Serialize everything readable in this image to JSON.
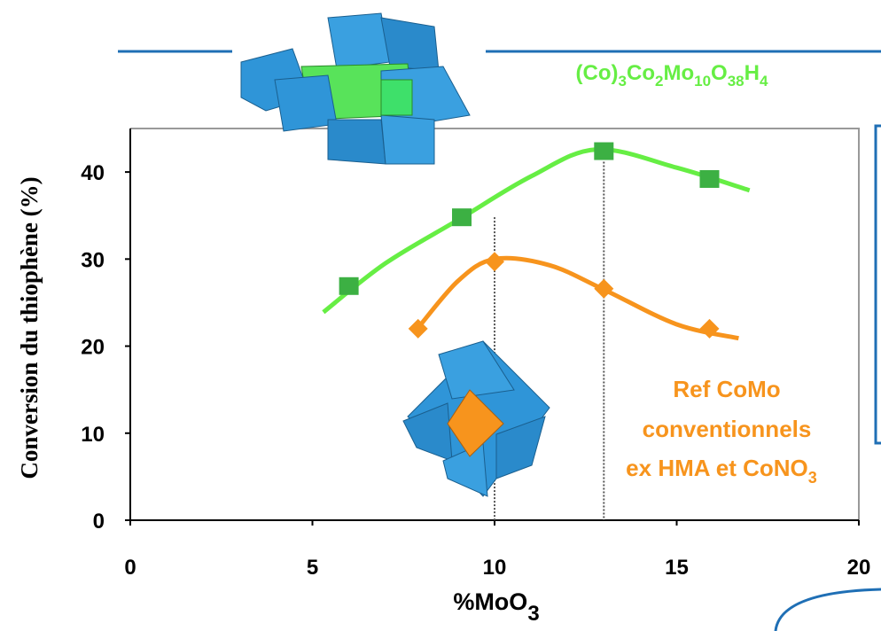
{
  "chart_data": {
    "type": "scatter",
    "formula": [
      "(Co)",
      "3",
      "Co",
      "2",
      "Mo",
      "10",
      "O",
      "38",
      "H",
      "4"
    ],
    "y_label": "Conversion du thiophène (%)",
    "x_label": {
      "text": "%MoO",
      "sub": "3"
    },
    "annotation": {
      "lines": [
        "Ref CoMo",
        "conventionnels",
        "ex HMA et CoNO"
      ],
      "sub": "3"
    },
    "xlim": [
      0,
      20
    ],
    "xticks": [
      0,
      5,
      10,
      15,
      20
    ],
    "ylim": [
      0,
      45
    ],
    "yticks": [
      0,
      10,
      20,
      30,
      40
    ],
    "series": [
      {
        "color": "#3cb043",
        "marker": "square",
        "x": [
          6,
          9.1,
          13,
          15.9
        ],
        "values": [
          26.9,
          34.8,
          42.4,
          39.2
        ]
      },
      {
        "color": "#f7941d",
        "marker": "diamond",
        "x": [
          7.9,
          10,
          13,
          15.9
        ],
        "values": [
          22,
          29.7,
          26.6,
          22
        ]
      }
    ],
    "fits": [
      {
        "color": "#66ee44",
        "x": [
          5.3,
          7,
          9,
          11,
          12.8,
          15,
          17
        ],
        "values": [
          23.9,
          29.5,
          34.5,
          39.5,
          42.6,
          40.5,
          37.9
        ]
      },
      {
        "color": "#f7941d",
        "x": [
          7.9,
          9,
          10,
          11.5,
          13,
          15,
          16.7
        ],
        "values": [
          22.1,
          27.5,
          30,
          29.3,
          26.5,
          22.5,
          20.9
        ]
      }
    ],
    "vlines": [
      {
        "x": 10,
        "top": 34.8
      },
      {
        "x": 13,
        "top": 42.4
      }
    ]
  }
}
